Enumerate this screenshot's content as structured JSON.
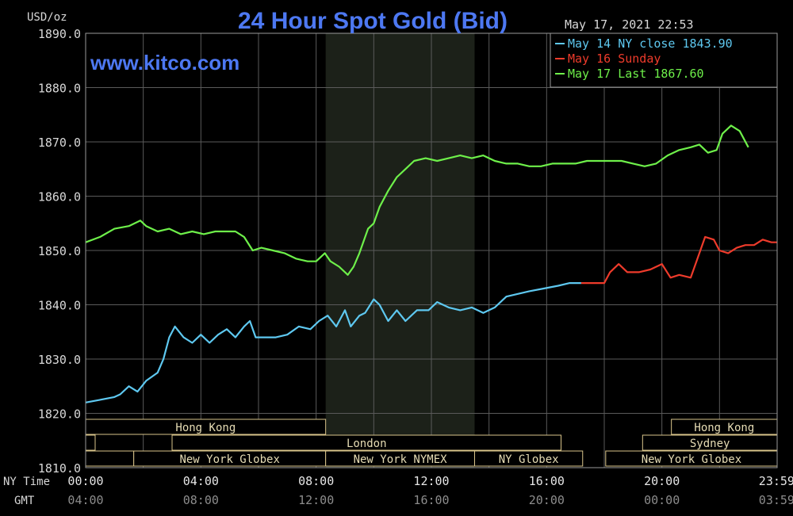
{
  "chart_data": {
    "type": "line",
    "title": "24 Hour Spot Gold (Bid)",
    "ylabel": "USD/oz",
    "watermark": "www.kitco.com",
    "timestamp": "May 17, 2021 22:53",
    "ylim": [
      1810,
      1890
    ],
    "y_ticks": [
      "1890.0",
      "1880.0",
      "1870.0",
      "1860.0",
      "1850.0",
      "1840.0",
      "1830.0",
      "1820.0",
      "1810.0"
    ],
    "y_tick_values": [
      1890,
      1880,
      1870,
      1860,
      1850,
      1840,
      1830,
      1820,
      1810
    ],
    "xlim": [
      0,
      24
    ],
    "x_row_ny_label": "NY Time",
    "x_row_gmt_label": "GMT",
    "x_ticks_ny": [
      "00:00",
      "04:00",
      "08:00",
      "12:00",
      "16:00",
      "20:00",
      "23:59"
    ],
    "x_ticks_gmt": [
      "04:00",
      "08:00",
      "12:00",
      "16:00",
      "20:00",
      "00:00",
      "03:59"
    ],
    "x_tick_hours": [
      0,
      4,
      8,
      12,
      16,
      20,
      23.983
    ],
    "shaded_region_hours": [
      8.33,
      13.5
    ],
    "legend": [
      {
        "label": "May 14 NY close 1843.90",
        "color": "#5ec8f0"
      },
      {
        "label": "May 16 Sunday",
        "color": "#ee3b2b"
      },
      {
        "label": "May 17 Last 1867.60",
        "color": "#6ef04a"
      }
    ],
    "series": [
      {
        "name": "May 14 NY close 1843.90",
        "color": "#5ec8f0",
        "x": [
          0,
          0.5,
          1,
          1.2,
          1.5,
          1.8,
          2.1,
          2.5,
          2.7,
          2.9,
          3.1,
          3.4,
          3.7,
          4.0,
          4.3,
          4.6,
          4.9,
          5.2,
          5.5,
          5.7,
          5.9,
          6.2,
          6.6,
          7.0,
          7.4,
          7.8,
          8.1,
          8.4,
          8.7,
          9.0,
          9.2,
          9.5,
          9.7,
          10.0,
          10.2,
          10.5,
          10.8,
          11.1,
          11.5,
          11.9,
          12.2,
          12.6,
          13.0,
          13.4,
          13.8,
          14.2,
          14.6,
          15.0,
          15.4,
          15.9,
          16.4,
          16.8,
          17.2
        ],
        "y": [
          1822,
          1822.5,
          1823,
          1823.5,
          1825,
          1824,
          1826,
          1827.5,
          1830,
          1834,
          1836,
          1834,
          1833,
          1834.5,
          1833,
          1834.5,
          1835.5,
          1834,
          1836,
          1837,
          1834,
          1834,
          1834,
          1834.5,
          1836,
          1835.5,
          1837,
          1838,
          1836,
          1839,
          1836,
          1838,
          1838.5,
          1841,
          1840,
          1837,
          1839,
          1837,
          1839,
          1839,
          1840.5,
          1839.5,
          1839,
          1839.5,
          1838.5,
          1839.5,
          1841.5,
          1842,
          1842.5,
          1843,
          1843.5,
          1844,
          1844
        ]
      },
      {
        "name": "May 16 Sunday",
        "color": "#ee3b2b",
        "x": [
          17.2,
          17.6,
          18.0,
          18.2,
          18.5,
          18.8,
          19.2,
          19.6,
          20.0,
          20.3,
          20.6,
          21.0,
          21.2,
          21.5,
          21.8,
          22.0,
          22.3,
          22.6,
          22.9,
          23.2,
          23.5,
          23.8,
          24.0
        ],
        "y": [
          1844,
          1844,
          1844,
          1846,
          1847.5,
          1846,
          1846,
          1846.5,
          1847.5,
          1845,
          1845.5,
          1845,
          1848,
          1852.5,
          1852,
          1850,
          1849.5,
          1850.5,
          1851,
          1851,
          1852,
          1851.5,
          1851.5
        ]
      },
      {
        "name": "May 17 Last 1867.60",
        "color": "#6ef04a",
        "x": [
          0,
          0.5,
          1.0,
          1.5,
          1.9,
          2.1,
          2.5,
          2.9,
          3.3,
          3.7,
          4.1,
          4.5,
          4.9,
          5.2,
          5.5,
          5.8,
          6.1,
          6.5,
          6.9,
          7.3,
          7.7,
          8.0,
          8.3,
          8.5,
          8.8,
          9.1,
          9.3,
          9.5,
          9.8,
          10.0,
          10.2,
          10.5,
          10.8,
          11.1,
          11.4,
          11.8,
          12.2,
          12.6,
          13.0,
          13.4,
          13.8,
          14.2,
          14.6,
          15.0,
          15.4,
          15.8,
          16.2,
          16.6,
          17.0,
          17.4,
          17.8,
          18.2,
          18.6,
          19.0,
          19.4,
          19.8,
          20.2,
          20.6,
          21.0,
          21.3,
          21.6,
          21.9,
          22.1,
          22.4,
          22.7,
          23.0
        ],
        "y": [
          1851.5,
          1852.5,
          1854,
          1854.5,
          1855.5,
          1854.5,
          1853.5,
          1854,
          1853,
          1853.5,
          1853,
          1853.5,
          1853.5,
          1853.5,
          1852.5,
          1850,
          1850.5,
          1850,
          1849.5,
          1848.5,
          1848,
          1848,
          1849.5,
          1848,
          1847,
          1845.5,
          1847,
          1849.5,
          1854,
          1855,
          1858,
          1861,
          1863.5,
          1865,
          1866.5,
          1867,
          1866.5,
          1867,
          1867.5,
          1867,
          1867.5,
          1866.5,
          1866,
          1866,
          1865.5,
          1865.5,
          1866,
          1866,
          1866,
          1866.5,
          1866.5,
          1866.5,
          1866.5,
          1866,
          1865.5,
          1866,
          1867.5,
          1868.5,
          1869,
          1869.5,
          1868,
          1868.5,
          1871.5,
          1873,
          1872,
          1869
        ]
      }
    ],
    "sessions": [
      {
        "label": "Hong Kong",
        "hours": [
          0,
          8.33
        ],
        "row": 0
      },
      {
        "label": "",
        "hours": [
          0,
          0.33
        ],
        "row": 1
      },
      {
        "label": "London",
        "hours": [
          3,
          16.5
        ],
        "row": 1
      },
      {
        "label": "",
        "hours": [
          0,
          1.67
        ],
        "row": 2
      },
      {
        "label": "New York Globex",
        "hours": [
          1.67,
          8.33
        ],
        "row": 2
      },
      {
        "label": "New York NYMEX",
        "hours": [
          8.33,
          13.5
        ],
        "row": 2
      },
      {
        "label": "NY Globex",
        "hours": [
          13.5,
          17.25
        ],
        "row": 2
      },
      {
        "label": "Hong Kong",
        "hours": [
          20.33,
          24
        ],
        "row": 0
      },
      {
        "label": "Sydney",
        "hours": [
          19.33,
          24
        ],
        "row": 1
      },
      {
        "label": "New York Globex",
        "hours": [
          18.05,
          24
        ],
        "row": 2
      }
    ]
  }
}
